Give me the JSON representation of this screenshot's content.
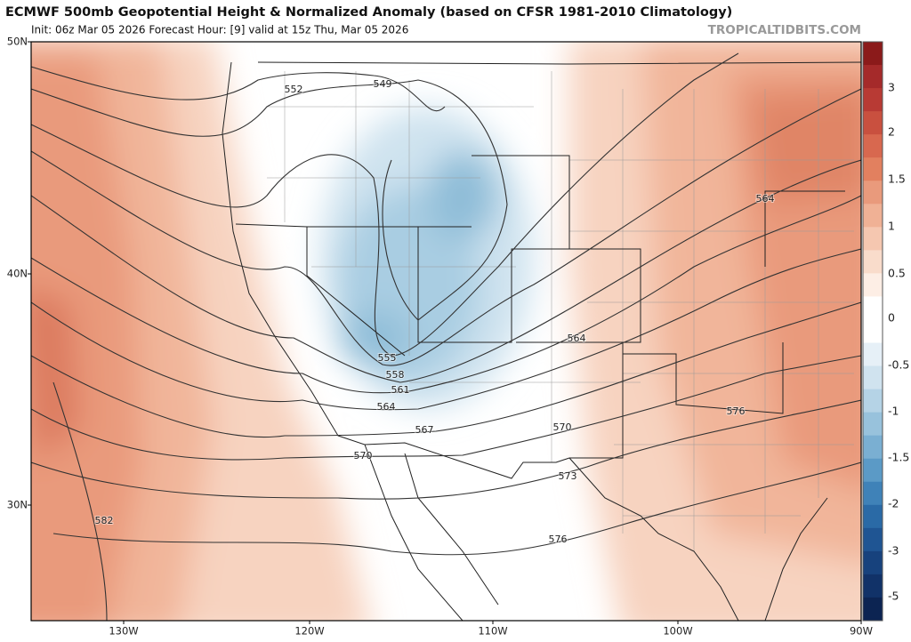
{
  "header": {
    "title": "ECMWF 500mb Geopotential Height & Normalized Anomaly (based on CFSR 1981-2010 Climatology)",
    "subtitle": "Init: 06z Mar 05 2026   Forecast Hour: [9]   valid at 15z Thu, Mar 05 2026",
    "watermark": "TROPICALTIDBITS.COM"
  },
  "map": {
    "lat_labels": [
      "50N",
      "40N",
      "30N"
    ],
    "lon_labels": [
      "130W",
      "120W",
      "110W",
      "100W",
      "90W"
    ],
    "contour_labels": [
      "552",
      "549",
      "555",
      "558",
      "561",
      "564",
      "567",
      "570",
      "570",
      "573",
      "576",
      "564",
      "564",
      "576",
      "582"
    ]
  },
  "colorbar": {
    "labels": [
      "3",
      "2",
      "1.5",
      "1",
      "0.5",
      "0",
      "-0.5",
      "-1",
      "-1.5",
      "-2",
      "-3",
      "-5"
    ]
  }
}
